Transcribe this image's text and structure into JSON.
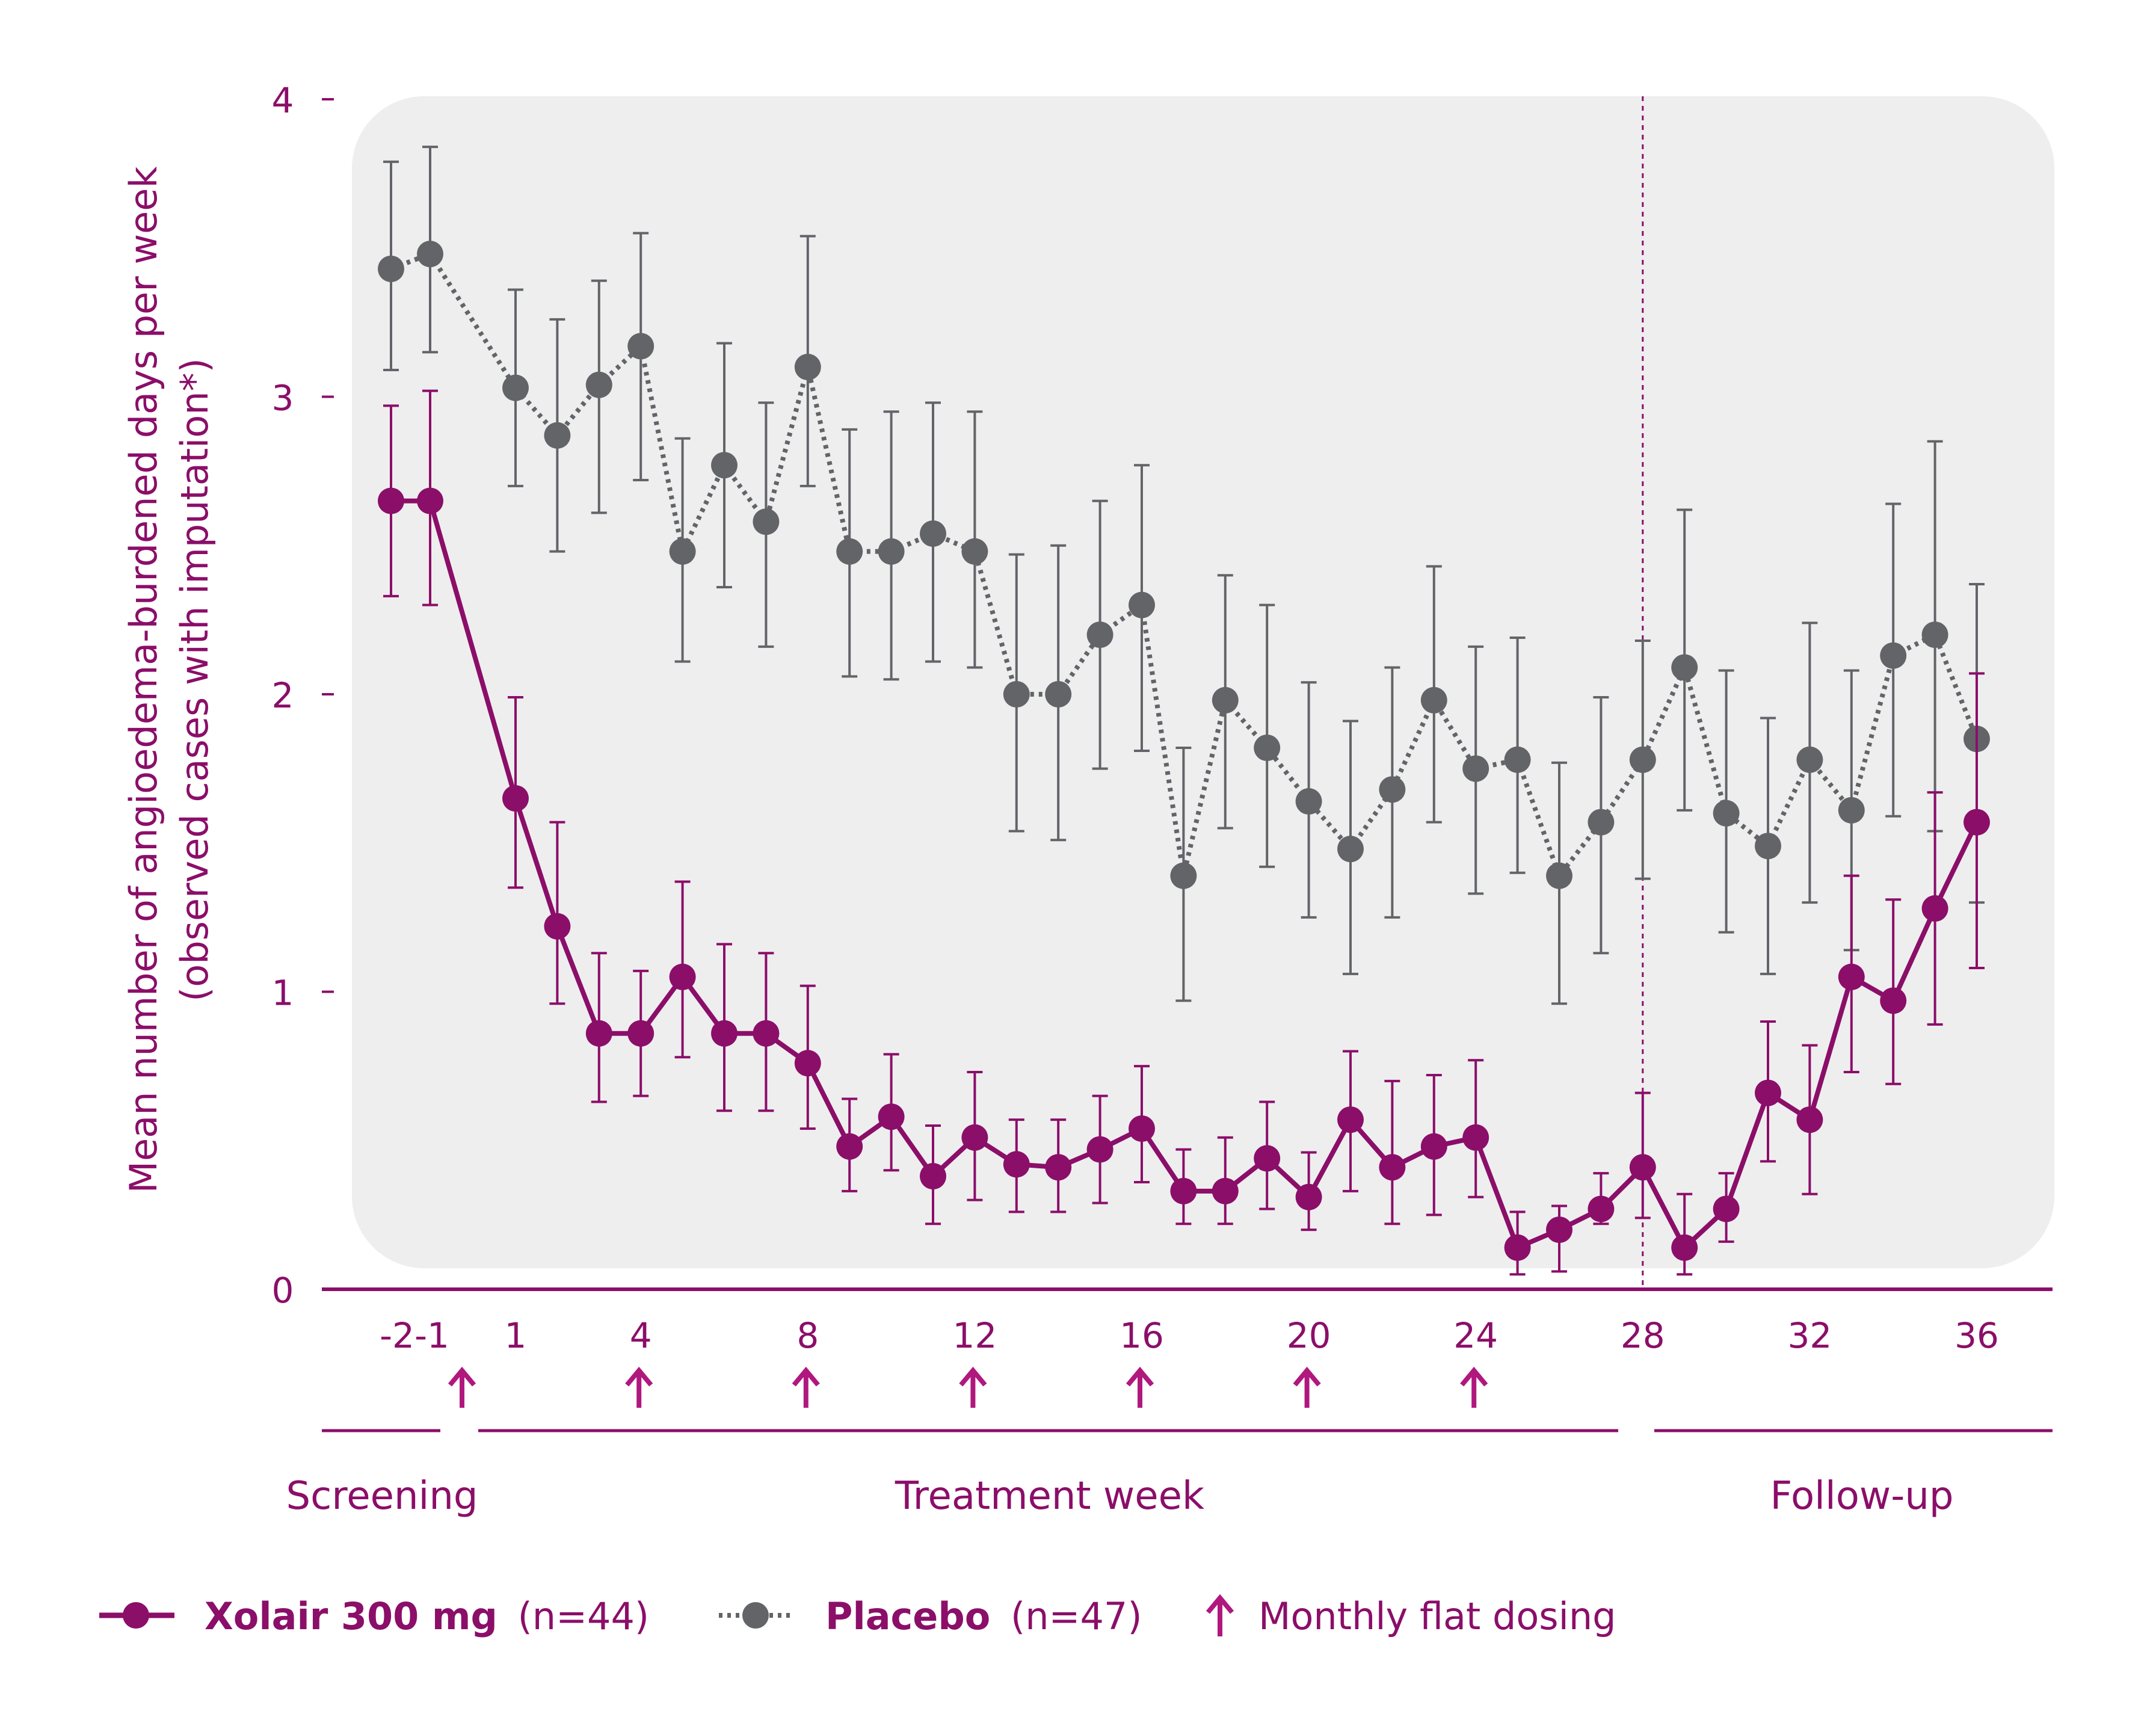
{
  "chart_data": {
    "type": "line",
    "title": "",
    "ylabel_line1": "Mean number of angioedema-burdened days per week",
    "ylabel_line2": "(observed cases with imputation*)",
    "ylim": [
      0,
      4
    ],
    "y_ticks": [
      "0",
      "1",
      "2",
      "3",
      "4"
    ],
    "x_ticks": [
      {
        "label": "-2",
        "x": -2
      },
      {
        "label": "-1",
        "x": -1
      },
      {
        "label": "1",
        "x": 1
      },
      {
        "label": "4",
        "x": 4
      },
      {
        "label": "8",
        "x": 8
      },
      {
        "label": "12",
        "x": 12
      },
      {
        "label": "16",
        "x": 16
      },
      {
        "label": "20",
        "x": 20
      },
      {
        "label": "24",
        "x": 24
      },
      {
        "label": "28",
        "x": 28
      },
      {
        "label": "32",
        "x": 32
      },
      {
        "label": "36",
        "x": 36
      }
    ],
    "dosing_weeks": [
      0,
      4,
      8,
      12,
      16,
      20,
      24
    ],
    "end_of_treatment_week": 28,
    "periods": [
      {
        "label": "Screening",
        "from": -2.5,
        "to": -0.5
      },
      {
        "label": "Treatment week",
        "from": 0.5,
        "to": 27.5
      },
      {
        "label": "Follow-up",
        "from": 28.5,
        "to": 38
      }
    ],
    "series": [
      {
        "name": "Xolair 300 mg",
        "n": "(n=44)",
        "color": "#8b0e69",
        "style": "solid",
        "x": [
          -2,
          -1,
          1,
          2,
          3,
          4,
          5,
          6,
          7,
          8,
          9,
          10,
          11,
          12,
          13,
          14,
          15,
          16,
          17,
          18,
          19,
          20,
          21,
          22,
          23,
          24,
          25,
          26,
          27,
          28,
          29,
          30,
          31,
          32,
          33,
          34,
          35,
          36
        ],
        "y": [
          2.65,
          2.65,
          1.65,
          1.22,
          0.86,
          0.86,
          1.05,
          0.86,
          0.86,
          0.76,
          0.48,
          0.58,
          0.38,
          0.51,
          0.42,
          0.41,
          0.47,
          0.54,
          0.33,
          0.33,
          0.44,
          0.31,
          0.57,
          0.41,
          0.48,
          0.51,
          0.14,
          0.2,
          0.27,
          0.41,
          0.14,
          0.27,
          0.66,
          0.57,
          1.05,
          0.97,
          1.28,
          1.57
        ],
        "lower": [
          2.33,
          2.3,
          1.35,
          0.96,
          0.63,
          0.65,
          0.78,
          0.6,
          0.6,
          0.54,
          0.33,
          0.4,
          0.22,
          0.3,
          0.26,
          0.26,
          0.29,
          0.36,
          0.22,
          0.22,
          0.27,
          0.2,
          0.33,
          0.22,
          0.25,
          0.31,
          0.05,
          0.06,
          0.22,
          0.24,
          0.05,
          0.16,
          0.43,
          0.32,
          0.73,
          0.69,
          0.89,
          1.08
        ],
        "upper": [
          2.97,
          3.02,
          1.99,
          1.57,
          1.13,
          1.07,
          1.37,
          1.16,
          1.13,
          1.02,
          0.64,
          0.79,
          0.55,
          0.73,
          0.57,
          0.57,
          0.65,
          0.75,
          0.47,
          0.51,
          0.63,
          0.46,
          0.8,
          0.7,
          0.72,
          0.77,
          0.26,
          0.28,
          0.39,
          0.66,
          0.32,
          0.39,
          0.9,
          0.82,
          1.39,
          1.31,
          1.67,
          2.07
        ]
      },
      {
        "name": "Placebo",
        "n": "(n=47)",
        "color": "#636468",
        "style": "dotted",
        "x": [
          -2,
          -1,
          1,
          2,
          3,
          4,
          5,
          6,
          7,
          8,
          9,
          10,
          11,
          12,
          13,
          14,
          15,
          16,
          17,
          18,
          19,
          20,
          21,
          22,
          23,
          24,
          25,
          26,
          27,
          28,
          29,
          30,
          31,
          32,
          33,
          34,
          35,
          36
        ],
        "y": [
          3.43,
          3.48,
          3.03,
          2.87,
          3.04,
          3.17,
          2.48,
          2.77,
          2.58,
          3.1,
          2.48,
          2.48,
          2.54,
          2.48,
          2.0,
          2.0,
          2.2,
          2.3,
          1.39,
          1.98,
          1.82,
          1.64,
          1.48,
          1.68,
          1.98,
          1.75,
          1.78,
          1.39,
          1.57,
          1.78,
          2.09,
          1.6,
          1.49,
          1.78,
          1.61,
          2.13,
          2.2,
          1.85
        ],
        "lower": [
          3.09,
          3.15,
          2.7,
          2.48,
          2.61,
          2.72,
          2.11,
          2.36,
          2.16,
          2.7,
          2.06,
          2.05,
          2.11,
          2.09,
          1.54,
          1.51,
          1.75,
          1.81,
          0.97,
          1.55,
          1.42,
          1.25,
          1.06,
          1.25,
          1.57,
          1.33,
          1.4,
          0.96,
          1.13,
          1.38,
          1.61,
          1.2,
          1.06,
          1.3,
          1.14,
          1.59,
          1.54,
          1.3
        ],
        "upper": [
          3.79,
          3.84,
          3.36,
          3.26,
          3.39,
          3.55,
          2.86,
          3.18,
          2.98,
          3.54,
          2.89,
          2.95,
          2.98,
          2.95,
          2.47,
          2.5,
          2.65,
          2.77,
          1.82,
          2.4,
          2.3,
          2.04,
          1.91,
          2.09,
          2.43,
          2.16,
          2.19,
          1.77,
          1.99,
          2.18,
          2.62,
          2.08,
          1.92,
          2.24,
          2.08,
          2.64,
          2.85,
          2.37
        ]
      }
    ]
  },
  "legend": {
    "xolair_name": "Xolair 300 mg",
    "xolair_n": "(n=44)",
    "placebo_name": "Placebo",
    "placebo_n": "(n=47)",
    "dosing_label": "Monthly flat dosing"
  },
  "colors": {
    "accent": "#8b0e69",
    "placebo": "#636468",
    "panel": "#eeeeef",
    "background": "#ffffff"
  }
}
